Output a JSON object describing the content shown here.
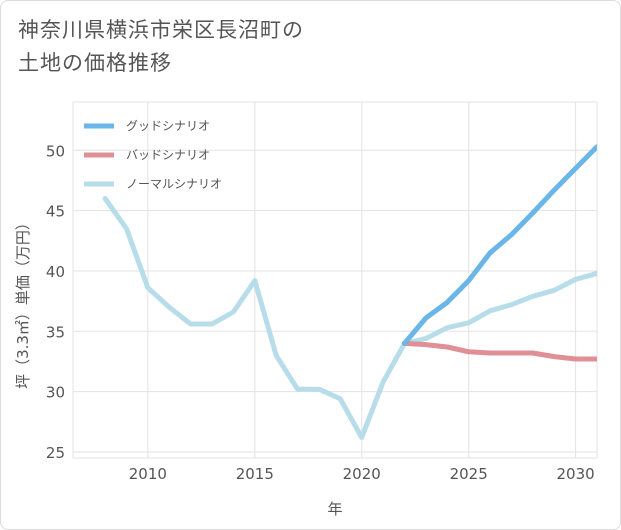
{
  "chart_data": {
    "type": "line",
    "title_line1": "神奈川県横浜市栄区長沼町の",
    "title_line2": "土地の価格推移",
    "xlabel": "年",
    "ylabel": "坪（3.3㎡）単価（万円）",
    "xlim": [
      2006.5,
      2031
    ],
    "ylim": [
      24.5,
      54
    ],
    "xticks": [
      2010,
      2015,
      2020,
      2025,
      2030
    ],
    "yticks": [
      25,
      30,
      35,
      40,
      45,
      50
    ],
    "series": [
      {
        "name": "グッドシナリオ",
        "color": "#6bb6e8",
        "x": [
          2022,
          2023,
          2024,
          2025,
          2026,
          2027,
          2028,
          2029,
          2030,
          2031
        ],
        "y": [
          34.0,
          36.1,
          37.4,
          39.2,
          41.5,
          43.0,
          44.8,
          46.7,
          48.5,
          50.3
        ]
      },
      {
        "name": "バッドシナリオ",
        "color": "#e08f96",
        "x": [
          2022,
          2023,
          2024,
          2025,
          2026,
          2027,
          2028,
          2029,
          2030,
          2031
        ],
        "y": [
          34.0,
          33.9,
          33.7,
          33.3,
          33.2,
          33.2,
          33.2,
          32.9,
          32.7,
          32.7
        ]
      },
      {
        "name": "ノーマルシナリオ",
        "color": "#b7dcea",
        "x": [
          2008,
          2009,
          2010,
          2011,
          2012,
          2013,
          2014,
          2015,
          2016,
          2017,
          2018,
          2019,
          2020,
          2021,
          2022,
          2023,
          2024,
          2025,
          2026,
          2027,
          2028,
          2029,
          2030,
          2031
        ],
        "y": [
          46.0,
          43.5,
          38.6,
          37.0,
          35.6,
          35.6,
          36.6,
          39.2,
          33.0,
          30.2,
          30.2,
          29.4,
          26.2,
          30.8,
          34.0,
          34.4,
          35.3,
          35.7,
          36.7,
          37.2,
          37.9,
          38.4,
          39.3,
          39.8
        ]
      }
    ],
    "legend_position": "top-left",
    "grid": true
  }
}
